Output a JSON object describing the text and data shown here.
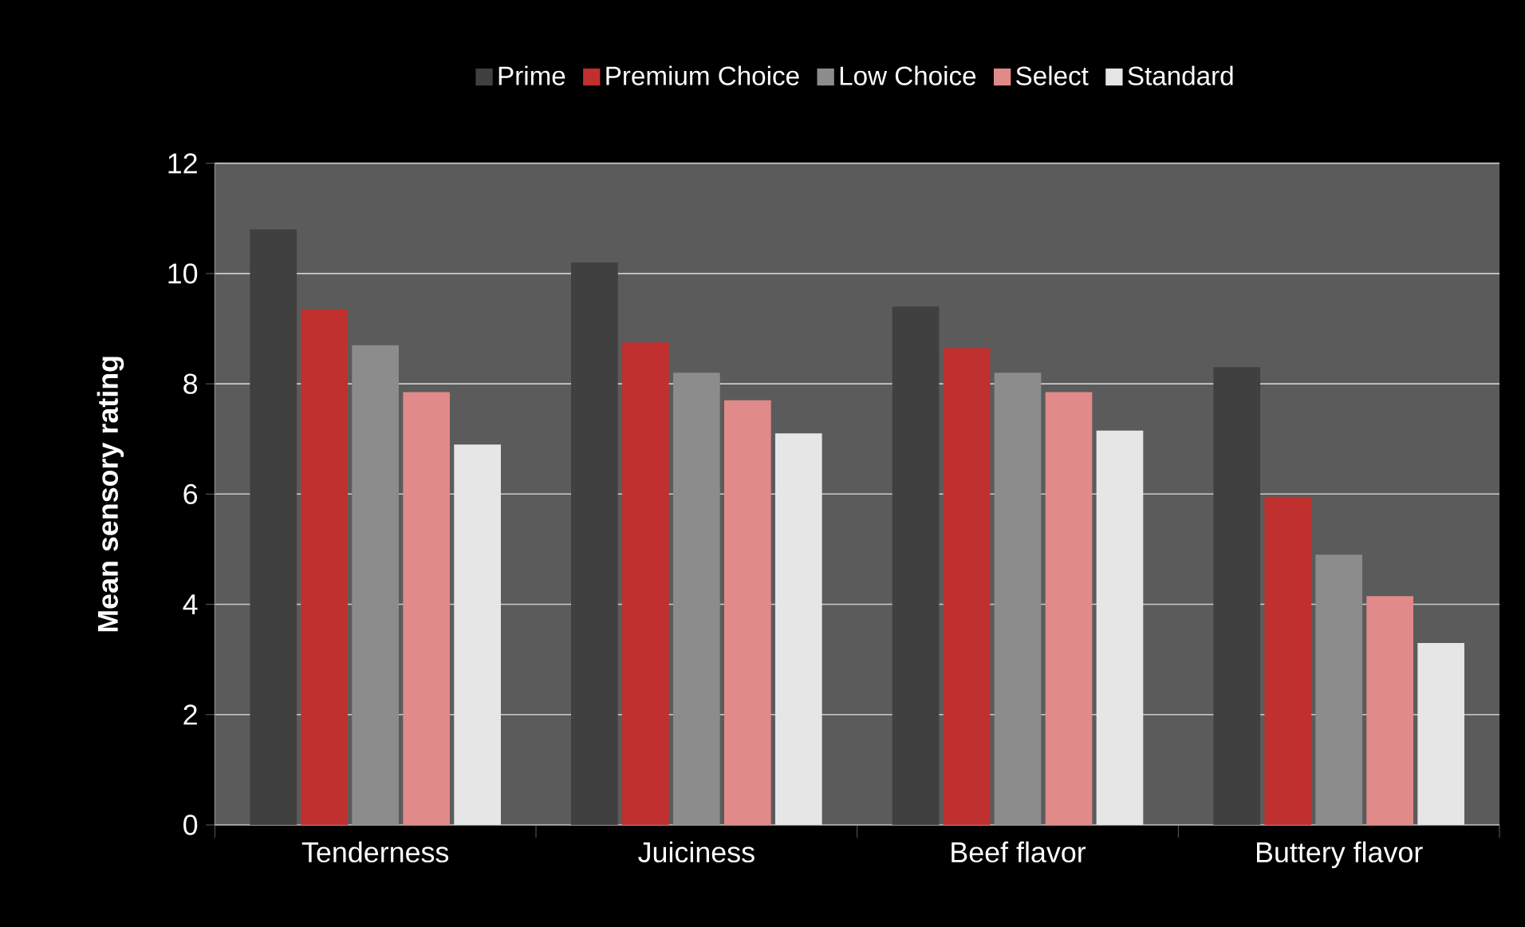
{
  "chart_data": {
    "type": "bar",
    "ylabel": "Mean sensory rating",
    "categories": [
      "Tenderness",
      "Juiciness",
      "Beef flavor",
      "Buttery flavor"
    ],
    "series": [
      {
        "name": "Prime",
        "color": "#404040",
        "values": [
          10.8,
          10.2,
          9.4,
          8.3
        ]
      },
      {
        "name": "Premium Choice",
        "color": "#c0302f",
        "values": [
          9.35,
          8.75,
          8.65,
          5.95
        ]
      },
      {
        "name": "Low Choice",
        "color": "#8c8c8c",
        "values": [
          8.7,
          8.2,
          8.2,
          4.9
        ]
      },
      {
        "name": "Select",
        "color": "#e08a8a",
        "values": [
          7.85,
          7.7,
          7.85,
          4.15
        ]
      },
      {
        "name": "Standard",
        "color": "#e6e6e6",
        "values": [
          6.9,
          7.1,
          7.15,
          3.3
        ]
      }
    ],
    "ylim": [
      0,
      12
    ],
    "yticks": [
      0,
      2,
      4,
      6,
      8,
      10,
      12
    ],
    "grid": "y",
    "legend": "top"
  }
}
